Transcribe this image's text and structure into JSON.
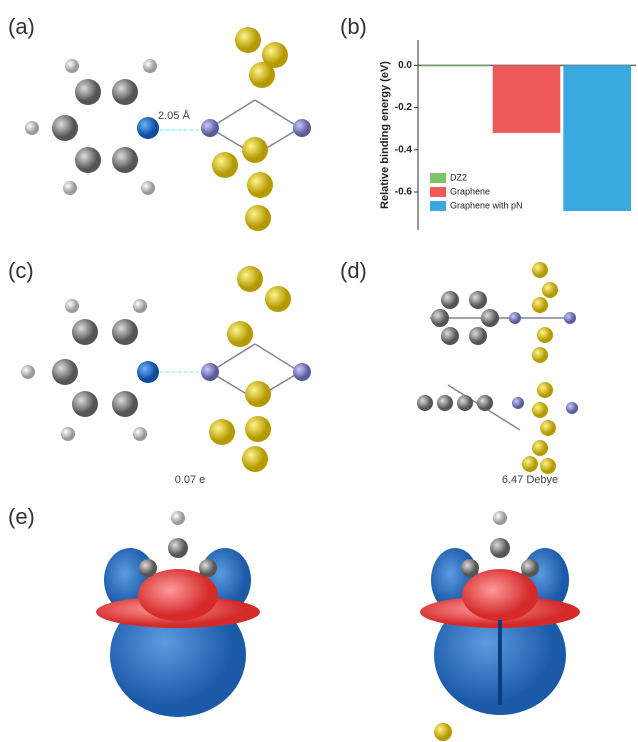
{
  "panel_labels": [
    "(a)",
    "(b)",
    "(c)",
    "(d)",
    "(e)"
  ],
  "annotations": {
    "bond_length": "2.05 Å",
    "charge_transfer": "0.07 e",
    "dipole": "6.47 Debye"
  },
  "chart_data": {
    "type": "bar",
    "y_label": "Relative binding energy (eV)",
    "series": [
      {
        "name": "DZ2",
        "color": "#7cc36a",
        "values": [
          -0.005
        ]
      },
      {
        "name": "Graphene",
        "color": "#ee5a5a",
        "values": [
          -0.32
        ]
      },
      {
        "name": "Graphene with pN",
        "color": "#39a9e0",
        "values": [
          -0.69
        ]
      }
    ],
    "ylim": [
      -0.78,
      0.12
    ],
    "yticks": [
      {
        "value": 0,
        "label": "0.0"
      },
      -0.2,
      -0.4,
      -0.6
    ]
  }
}
